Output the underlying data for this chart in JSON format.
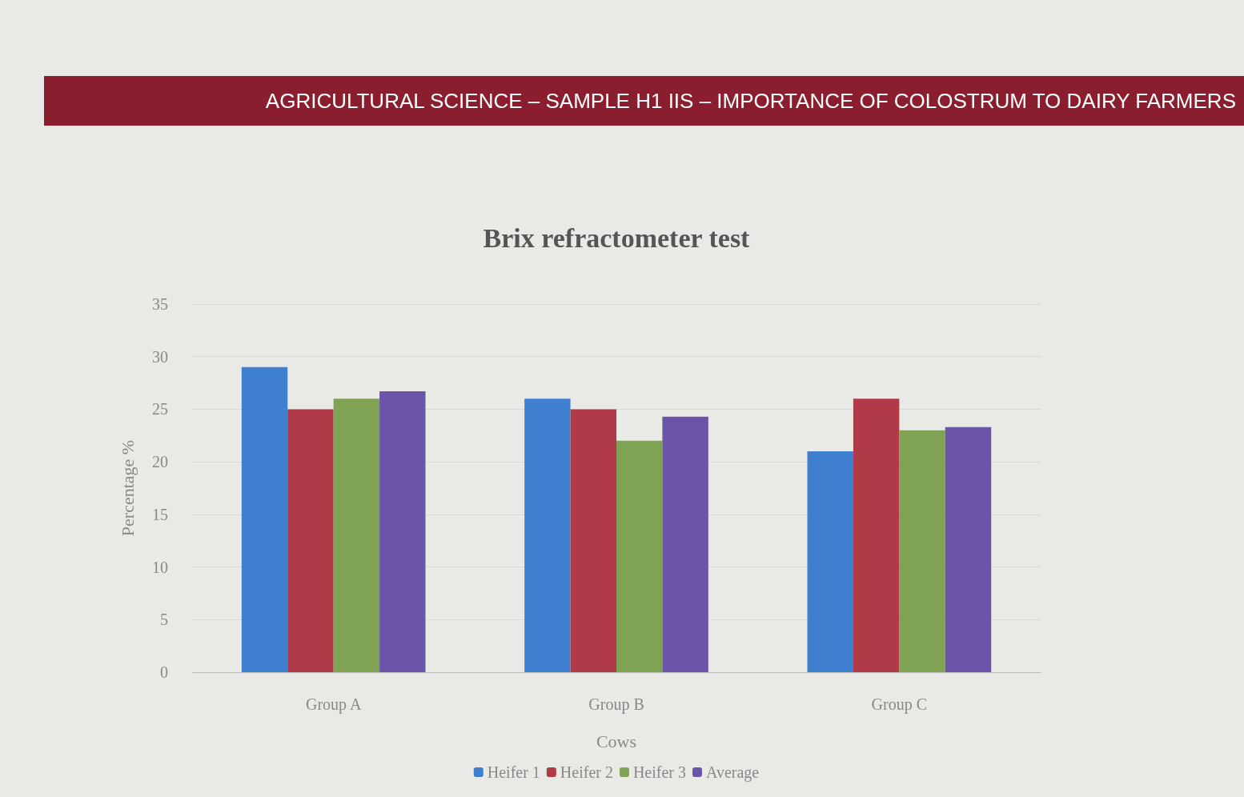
{
  "chart_data": {
    "type": "bar",
    "title": "Brix refractometer test",
    "annotations": [
      "AGRICULTURAL SCIENCE – SAMPLE H1 IIS – IMPORTANCE OF COLOSTRUM TO DAIRY FARMERS"
    ],
    "xlabel": "Cows",
    "ylabel": "Percentage %",
    "categories": [
      "Group A",
      "Group B",
      "Group C"
    ],
    "series": [
      {
        "name": "Heifer 1",
        "color": "#3f7fcf",
        "values": [
          29,
          26,
          21
        ]
      },
      {
        "name": "Heifer 2",
        "color": "#b03a48",
        "values": [
          25,
          25,
          26
        ]
      },
      {
        "name": "Heifer 3",
        "color": "#7fa352",
        "values": [
          26,
          22,
          23
        ]
      },
      {
        "name": "Average",
        "color": "#6a55a8",
        "values": [
          26.7,
          24.3,
          23.3
        ]
      }
    ],
    "ylim": [
      0,
      35
    ],
    "yticks": [
      0,
      5,
      10,
      15,
      20,
      25,
      30,
      35
    ],
    "grid": "y",
    "legend": "bottom"
  }
}
